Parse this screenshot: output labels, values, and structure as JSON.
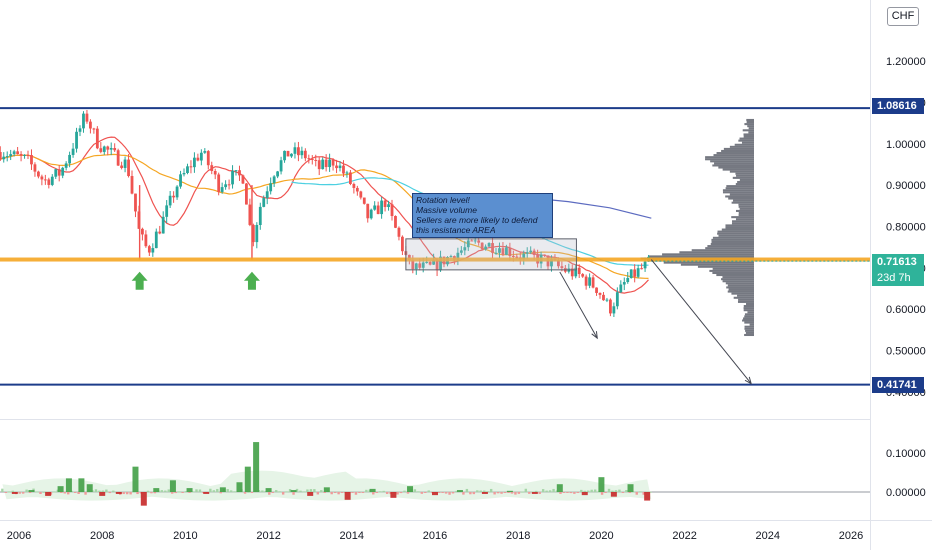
{
  "currency_label": "CHF",
  "annotation": {
    "lines": [
      "Rotation level!",
      "Massive volume",
      "Sellers are more likely to defend",
      "this resistance AREA"
    ]
  },
  "price_tags": {
    "upper_level": "1.08616",
    "last_price": "0.71613",
    "countdown": "23d 7h",
    "lower_level": "0.41741"
  },
  "colors": {
    "level_line": "#1c3c8a",
    "resistance_line": "#f5a623",
    "up_candle": "#26a69a",
    "down_candle": "#ef5350",
    "signal_arrow": "#4caf50",
    "volume_profile": "#5d606b",
    "ma_fast": "#ef5350",
    "ma_mid": "#f5a623",
    "ma_cyan": "#4dd0e1",
    "ma_purple": "#5c6bc0"
  },
  "chart_data": [
    {
      "type": "candlestick",
      "symbol_quote": "CHF",
      "x_ticks": [
        "2006",
        "2008",
        "2010",
        "2012",
        "2014",
        "2016",
        "2018",
        "2020",
        "2022",
        "2024",
        "2026"
      ],
      "y_ticks": [
        1.2,
        1.1,
        1.0,
        0.9,
        0.8,
        0.7,
        0.6,
        0.5,
        0.4
      ],
      "y_tick_labels": [
        "1.20000",
        "1.10000",
        "1.00000",
        "0.90000",
        "0.80000",
        "0.70000",
        "0.60000",
        "0.50000",
        "0.40000"
      ],
      "ylim": [
        0.39,
        1.22
      ],
      "xlim": [
        2005.5,
        2027
      ],
      "price_path": [
        [
          2005.6,
          0.98
        ],
        [
          2006.2,
          0.96
        ],
        [
          2006.6,
          0.91
        ],
        [
          2007.0,
          0.93
        ],
        [
          2007.4,
          1.02
        ],
        [
          2007.6,
          1.07
        ],
        [
          2007.9,
          1.0
        ],
        [
          2008.3,
          0.97
        ],
        [
          2008.6,
          0.95
        ],
        [
          2008.9,
          0.78
        ],
        [
          2009.1,
          0.74
        ],
        [
          2009.4,
          0.8
        ],
        [
          2009.8,
          0.9
        ],
        [
          2010.2,
          0.96
        ],
        [
          2010.4,
          0.98
        ],
        [
          2010.8,
          0.9
        ],
        [
          2011.1,
          0.92
        ],
        [
          2011.4,
          0.92
        ],
        [
          2011.6,
          0.76
        ],
        [
          2011.8,
          0.85
        ],
        [
          2012.1,
          0.93
        ],
        [
          2012.5,
          0.98
        ],
        [
          2012.9,
          0.97
        ],
        [
          2013.2,
          0.94
        ],
        [
          2013.6,
          0.96
        ],
        [
          2014.0,
          0.9
        ],
        [
          2014.4,
          0.82
        ],
        [
          2014.8,
          0.86
        ],
        [
          2015.1,
          0.78
        ],
        [
          2015.4,
          0.7
        ],
        [
          2015.9,
          0.7
        ],
        [
          2016.4,
          0.73
        ],
        [
          2017.0,
          0.76
        ],
        [
          2017.6,
          0.75
        ],
        [
          2018.0,
          0.73
        ],
        [
          2018.6,
          0.72
        ],
        [
          2019.0,
          0.7
        ],
        [
          2019.5,
          0.68
        ],
        [
          2019.9,
          0.65
        ],
        [
          2020.2,
          0.6
        ],
        [
          2020.6,
          0.67
        ],
        [
          2021.0,
          0.7
        ],
        [
          2021.2,
          0.716
        ]
      ],
      "series": [
        {
          "name": "",
          "kind": "moving-average",
          "color": "#ef5350"
        },
        {
          "name": "",
          "kind": "moving-average",
          "color": "#f5a623"
        },
        {
          "name": "",
          "kind": "moving-average",
          "color": "#4dd0e1"
        },
        {
          "name": "",
          "kind": "moving-average",
          "color": "#5c6bc0"
        }
      ],
      "horizontal_levels": [
        1.08616,
        0.71613,
        0.41741,
        0.72
      ],
      "signal_arrows_x": [
        2008.9,
        2011.6
      ],
      "projection_lines": [
        {
          "from": [
            2019.0,
            0.69
          ],
          "to": [
            2019.9,
            0.53
          ]
        },
        {
          "from": [
            2021.2,
            0.72
          ],
          "to": [
            2023.6,
            0.42
          ]
        }
      ],
      "grid": false,
      "volume_profile_range": [
        0.535,
        1.055
      ]
    },
    {
      "type": "bar",
      "indicator": "volume-oscillator",
      "y_ticks": [
        0.1,
        0.0
      ],
      "y_tick_labels": [
        "0.10000",
        "0.00000"
      ],
      "ylim": [
        -0.03,
        0.15
      ],
      "values": [
        [
          2005.9,
          -0.005
        ],
        [
          2006.3,
          0.005
        ],
        [
          2006.7,
          -0.01
        ],
        [
          2007.0,
          0.015
        ],
        [
          2007.2,
          0.035
        ],
        [
          2007.5,
          0.035
        ],
        [
          2007.7,
          0.02
        ],
        [
          2008.0,
          -0.01
        ],
        [
          2008.4,
          -0.005
        ],
        [
          2008.8,
          0.065
        ],
        [
          2009.0,
          -0.035
        ],
        [
          2009.3,
          0.01
        ],
        [
          2009.7,
          0.03
        ],
        [
          2010.1,
          0.01
        ],
        [
          2010.5,
          -0.005
        ],
        [
          2010.9,
          0.012
        ],
        [
          2011.3,
          0.025
        ],
        [
          2011.5,
          0.065
        ],
        [
          2011.7,
          0.128
        ],
        [
          2012.0,
          0.01
        ],
        [
          2012.6,
          0.005
        ],
        [
          2013.0,
          -0.01
        ],
        [
          2013.4,
          0.012
        ],
        [
          2013.9,
          -0.02
        ],
        [
          2014.5,
          0.008
        ],
        [
          2015.0,
          -0.015
        ],
        [
          2015.4,
          0.015
        ],
        [
          2016.0,
          -0.008
        ],
        [
          2016.6,
          0.005
        ],
        [
          2017.2,
          -0.005
        ],
        [
          2017.8,
          0.003
        ],
        [
          2018.4,
          -0.005
        ],
        [
          2019.0,
          0.02
        ],
        [
          2019.6,
          -0.008
        ],
        [
          2020.0,
          0.038
        ],
        [
          2020.3,
          -0.012
        ],
        [
          2020.7,
          0.02
        ],
        [
          2021.1,
          -0.022
        ]
      ]
    }
  ]
}
